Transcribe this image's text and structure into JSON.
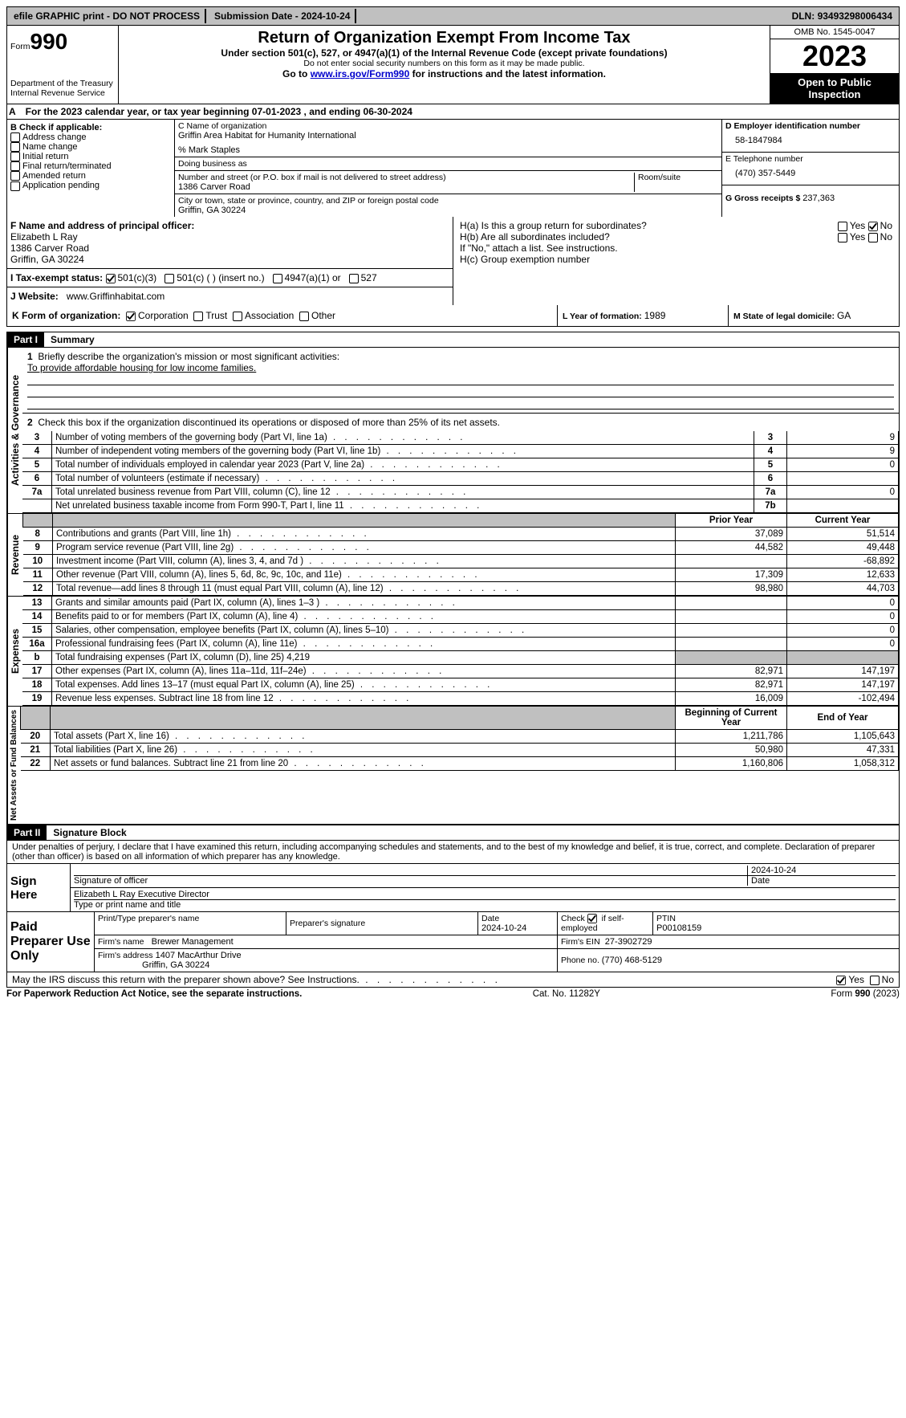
{
  "topbar": {
    "efile": "efile GRAPHIC print - DO NOT PROCESS",
    "sub_label": "Submission Date - ",
    "sub_date": "2024-10-24",
    "dln_label": "DLN: ",
    "dln": "93493298006434"
  },
  "header": {
    "form_prefix": "Form",
    "form_no": "990",
    "title": "Return of Organization Exempt From Income Tax",
    "subtitle": "Under section 501(c), 527, or 4947(a)(1) of the Internal Revenue Code (except private foundations)",
    "ssn_note": "Do not enter social security numbers on this form as it may be made public.",
    "goto_pre": "Go to ",
    "goto_link": "www.irs.gov/Form990",
    "goto_post": " for instructions and the latest information.",
    "dept": "Department of the Treasury\nInternal Revenue Service",
    "omb": "OMB No. 1545-0047",
    "year": "2023",
    "open": "Open to Public Inspection"
  },
  "sectionA": {
    "prefix_a": "A",
    "text1": "For the 2023 calendar year, or tax year beginning ",
    "begin": "07-01-2023",
    "mid": " , and ending ",
    "end": "06-30-2024"
  },
  "boxB": {
    "heading": "B Check if applicable:",
    "opts": [
      "Address change",
      "Name change",
      "Initial return",
      "Final return/terminated",
      "Amended return",
      "Application pending"
    ]
  },
  "boxC": {
    "name_label": "C Name of organization",
    "name": "Griffin Area Habitat for Humanity International",
    "care_of": "% Mark Staples",
    "dba_label": "Doing business as",
    "street_label": "Number and street (or P.O. box if mail is not delivered to street address)",
    "room_label": "Room/suite",
    "street": "1386 Carver Road",
    "city_label": "City or town, state or province, country, and ZIP or foreign postal code",
    "city": "Griffin, GA  30224"
  },
  "boxD": {
    "label": "D Employer identification number",
    "value": "58-1847984"
  },
  "boxE": {
    "label": "E Telephone number",
    "value": "(470) 357-5449"
  },
  "boxG": {
    "label": "G Gross receipts $ ",
    "value": "237,363"
  },
  "boxF": {
    "label": "F Name and address of principal officer:",
    "name": "Elizabeth L Ray",
    "street": "1386 Carver Road",
    "city": "Griffin, GA  30224"
  },
  "boxH": {
    "a": "H(a)  Is this a group return for subordinates?",
    "b": "H(b)  Are all subordinates included?",
    "b_note": "If \"No,\" attach a list. See instructions.",
    "c": "H(c)  Group exemption number",
    "yes": "Yes",
    "no": "No"
  },
  "boxI": {
    "label": "I   Tax-exempt status:",
    "o1": "501(c)(3)",
    "o2": "501(c) (  ) (insert no.)",
    "o3": "4947(a)(1) or",
    "o4": "527"
  },
  "boxJ": {
    "label": "J   Website:",
    "value": "www.Griffinhabitat.com"
  },
  "boxK": {
    "label": "K Form of organization:",
    "opts": [
      "Corporation",
      "Trust",
      "Association",
      "Other"
    ]
  },
  "boxL": {
    "label": "L Year of formation: ",
    "value": "1989"
  },
  "boxM": {
    "label": "M State of legal domicile: ",
    "value": "GA"
  },
  "part1": {
    "tag": "Part I",
    "title": "Summary"
  },
  "summary": {
    "line1_label": "Briefly describe the organization's mission or most significant activities:",
    "line1_text": "To provide affordable housing for low income families.",
    "line2": "Check this box       if the organization discontinued its operations or disposed of more than 25% of its net assets.",
    "lines_gov": [
      {
        "n": "3",
        "d": "Number of voting members of the governing body (Part VI, line 1a)",
        "ln": "3",
        "v": "9"
      },
      {
        "n": "4",
        "d": "Number of independent voting members of the governing body (Part VI, line 1b)",
        "ln": "4",
        "v": "9"
      },
      {
        "n": "5",
        "d": "Total number of individuals employed in calendar year 2023 (Part V, line 2a)",
        "ln": "5",
        "v": "0"
      },
      {
        "n": "6",
        "d": "Total number of volunteers (estimate if necessary)",
        "ln": "6",
        "v": ""
      },
      {
        "n": "7a",
        "d": "Total unrelated business revenue from Part VIII, column (C), line 12",
        "ln": "7a",
        "v": "0"
      },
      {
        "n": "",
        "d": "Net unrelated business taxable income from Form 990-T, Part I, line 11",
        "ln": "7b",
        "v": ""
      }
    ],
    "hdr_prior": "Prior Year",
    "hdr_curr": "Current Year",
    "rev": [
      {
        "n": "8",
        "d": "Contributions and grants (Part VIII, line 1h)",
        "p": "37,089",
        "c": "51,514"
      },
      {
        "n": "9",
        "d": "Program service revenue (Part VIII, line 2g)",
        "p": "44,582",
        "c": "49,448"
      },
      {
        "n": "10",
        "d": "Investment income (Part VIII, column (A), lines 3, 4, and 7d )",
        "p": "",
        "c": "-68,892"
      },
      {
        "n": "11",
        "d": "Other revenue (Part VIII, column (A), lines 5, 6d, 8c, 9c, 10c, and 11e)",
        "p": "17,309",
        "c": "12,633"
      },
      {
        "n": "12",
        "d": "Total revenue—add lines 8 through 11 (must equal Part VIII, column (A), line 12)",
        "p": "98,980",
        "c": "44,703"
      }
    ],
    "exp": [
      {
        "n": "13",
        "d": "Grants and similar amounts paid (Part IX, column (A), lines 1–3 )",
        "p": "",
        "c": "0"
      },
      {
        "n": "14",
        "d": "Benefits paid to or for members (Part IX, column (A), line 4)",
        "p": "",
        "c": "0"
      },
      {
        "n": "15",
        "d": "Salaries, other compensation, employee benefits (Part IX, column (A), lines 5–10)",
        "p": "",
        "c": "0"
      },
      {
        "n": "16a",
        "d": "Professional fundraising fees (Part IX, column (A), line 11e)",
        "p": "",
        "c": "0"
      },
      {
        "n": "b",
        "d": "Total fundraising expenses (Part IX, column (D), line 25) 4,219",
        "p": "GRAY",
        "c": "GRAY"
      },
      {
        "n": "17",
        "d": "Other expenses (Part IX, column (A), lines 11a–11d, 11f–24e)",
        "p": "82,971",
        "c": "147,197"
      },
      {
        "n": "18",
        "d": "Total expenses. Add lines 13–17 (must equal Part IX, column (A), line 25)",
        "p": "82,971",
        "c": "147,197"
      },
      {
        "n": "19",
        "d": "Revenue less expenses. Subtract line 18 from line 12",
        "p": "16,009",
        "c": "-102,494"
      }
    ],
    "hdr_begin": "Beginning of Current Year",
    "hdr_end": "End of Year",
    "net": [
      {
        "n": "20",
        "d": "Total assets (Part X, line 16)",
        "p": "1,211,786",
        "c": "1,105,643"
      },
      {
        "n": "21",
        "d": "Total liabilities (Part X, line 26)",
        "p": "50,980",
        "c": "47,331"
      },
      {
        "n": "22",
        "d": "Net assets or fund balances. Subtract line 21 from line 20",
        "p": "1,160,806",
        "c": "1,058,312"
      }
    ]
  },
  "part2": {
    "tag": "Part II",
    "title": "Signature Block"
  },
  "perjury": "Under penalties of perjury, I declare that I have examined this return, including accompanying schedules and statements, and to the best of my knowledge and belief, it is true, correct, and complete. Declaration of preparer (other than officer) is based on all information of which preparer has any knowledge.",
  "sign": {
    "here": "Sign Here",
    "sig_label": "Signature of officer",
    "date_label": "Date",
    "sig_date": "2024-10-24",
    "name_title": "Elizabeth L Ray  Executive Director",
    "type_label": "Type or print name and title"
  },
  "paid": {
    "label": "Paid Preparer Use Only",
    "c1": "Print/Type preparer's name",
    "c2": "Preparer's signature",
    "c3_label": "Date",
    "c3": "2024-10-24",
    "c4_pre": "Check ",
    "c4_post": " if self-employed",
    "c5_label": "PTIN",
    "c5": "P00108159",
    "firm_label": "Firm's name",
    "firm": "Brewer Management",
    "ein_label": "Firm's EIN",
    "ein": "27-3902729",
    "addr_label": "Firm's address",
    "addr1": "1407 MacArthur Drive",
    "addr2": "Griffin, GA  30224",
    "phone_label": "Phone no. ",
    "phone": "(770) 468-5129"
  },
  "discuss": {
    "q": "May the IRS discuss this return with the preparer shown above? See Instructions.",
    "yes": "Yes",
    "no": "No"
  },
  "footer": {
    "left": "For Paperwork Reduction Act Notice, see the separate instructions.",
    "mid": "Cat. No. 11282Y",
    "right_pre": "Form ",
    "right_b": "990",
    "right_post": " (2023)"
  },
  "vlabels": {
    "gov": "Activities & Governance",
    "rev": "Revenue",
    "exp": "Expenses",
    "net": "Net Assets or Fund Balances"
  }
}
